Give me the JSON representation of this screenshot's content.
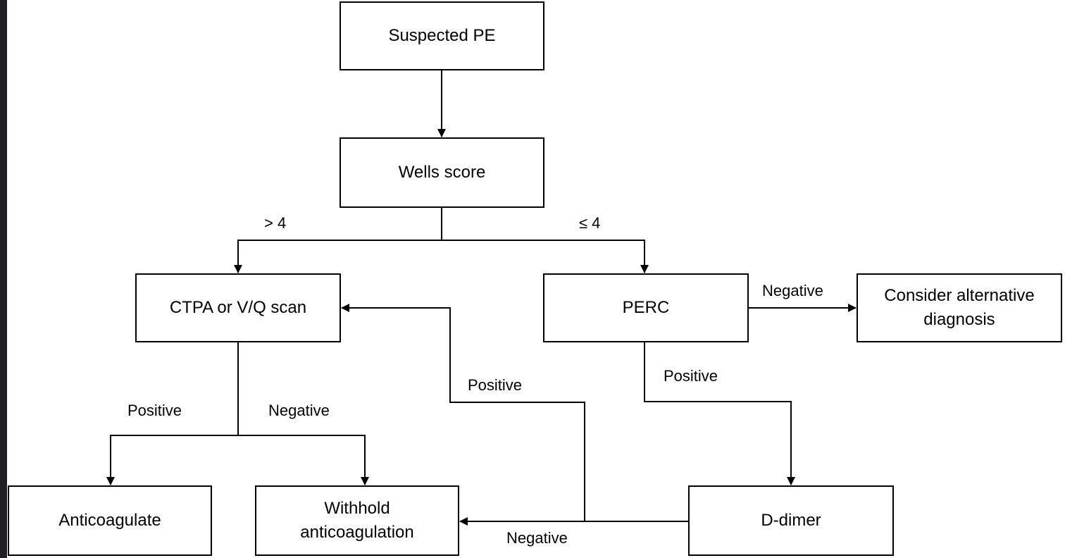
{
  "nodes": {
    "suspected_pe": "Suspected PE",
    "wells_score": "Wells score",
    "ctpa_vq": "CTPA or V/Q scan",
    "perc": "PERC",
    "alternative": "Consider alternative\ndiagnosis",
    "anticoagulate": "Anticoagulate",
    "withhold": "Withhold\nanticoagulation",
    "d_dimer": "D-dimer"
  },
  "edges": {
    "wells_high": "> 4",
    "wells_low": "≤ 4",
    "perc_negative": "Negative",
    "perc_positive": "Positive",
    "ctpa_positive": "Positive",
    "ctpa_negative": "Negative",
    "ddimer_positive": "Positive",
    "ddimer_negative": "Negative"
  },
  "colors": {
    "line": "#000000",
    "box_fill": "#ffffff",
    "frame": "#1e1e24"
  }
}
